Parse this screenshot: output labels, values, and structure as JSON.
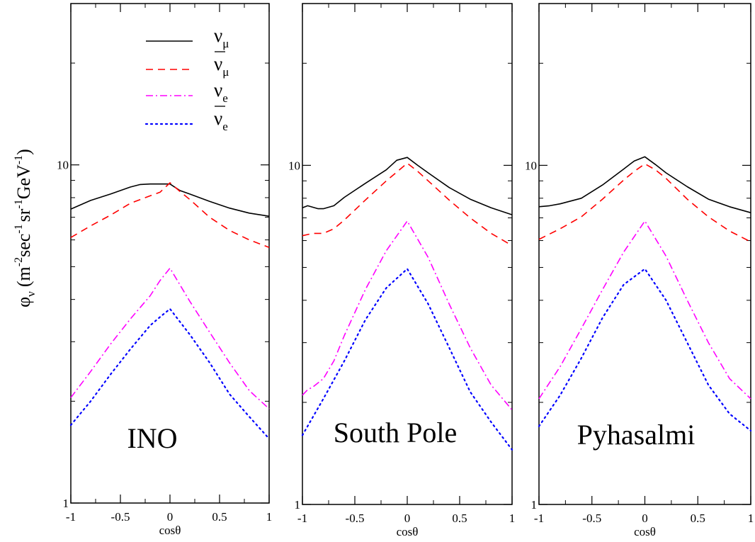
{
  "ylabel": {
    "phi": "φ",
    "nu": "ν",
    "unit": "(m",
    "e1": "-2",
    "sec": "sec",
    "e2": "-1",
    "sr": "sr",
    "e3": "-1",
    "gev": "GeV",
    "e4": "-1",
    "close": ")"
  },
  "xlabel": "cosθ",
  "legend": [
    {
      "symbol": "ν",
      "sub": "μ",
      "bar": false
    },
    {
      "symbol": "ν",
      "sub": "μ",
      "bar": true
    },
    {
      "symbol": "ν",
      "sub": "e",
      "bar": false
    },
    {
      "symbol": "ν",
      "sub": "e",
      "bar": true
    }
  ],
  "series_style": [
    {
      "color": "#000000",
      "dash": ""
    },
    {
      "color": "#ff0000",
      "dash": "10,7"
    },
    {
      "color": "#ff00ff",
      "dash": "10,4,2,4"
    },
    {
      "color": "#0000ff",
      "dash": "2,5"
    }
  ],
  "chart_data": [
    {
      "type": "line",
      "title": "INO",
      "xlabel": "cosθ",
      "ylabel": "φν (m-2 sec-1 sr-1 GeV-1)",
      "xlim": [
        -1,
        1
      ],
      "ylim": [
        1,
        30
      ],
      "yscale": "log",
      "x_ticks": [
        -1,
        -0.5,
        0,
        0.5,
        1
      ],
      "x_tick_labels": [
        "-1",
        "-0.5",
        "0",
        "0.5",
        "1"
      ],
      "y_ticks": [
        1,
        10
      ],
      "y_tick_labels": [
        "1",
        "10"
      ],
      "series": [
        {
          "x": [
            -1,
            -0.8,
            -0.6,
            -0.4,
            -0.3,
            -0.2,
            -0.1,
            0,
            0.1,
            0.2,
            0.4,
            0.6,
            0.8,
            1
          ],
          "values": [
            7.4,
            7.85,
            8.2,
            8.6,
            8.75,
            8.78,
            8.78,
            8.78,
            8.4,
            8.2,
            7.8,
            7.45,
            7.2,
            7.05
          ]
        },
        {
          "x": [
            -1,
            -0.8,
            -0.6,
            -0.4,
            -0.2,
            -0.1,
            0,
            0.1,
            0.2,
            0.4,
            0.6,
            0.8,
            1
          ],
          "values": [
            6.1,
            6.6,
            7.1,
            7.7,
            8.1,
            8.3,
            8.85,
            8.35,
            7.9,
            7.0,
            6.4,
            6.0,
            5.7
          ]
        },
        {
          "x": [
            -1,
            -0.8,
            -0.6,
            -0.4,
            -0.2,
            -0.1,
            0,
            0.2,
            0.4,
            0.6,
            0.8,
            1
          ],
          "values": [
            2.05,
            2.45,
            2.95,
            3.5,
            4.1,
            4.55,
            4.95,
            3.95,
            3.2,
            2.6,
            2.15,
            1.9
          ]
        },
        {
          "x": [
            -1,
            -0.8,
            -0.6,
            -0.4,
            -0.2,
            -0.1,
            0,
            0.2,
            0.4,
            0.6,
            0.8,
            1
          ],
          "values": [
            1.7,
            2.0,
            2.4,
            2.85,
            3.35,
            3.55,
            3.75,
            3.15,
            2.6,
            2.1,
            1.8,
            1.55
          ]
        }
      ]
    },
    {
      "type": "line",
      "title": "South Pole",
      "xlabel": "cosθ",
      "xlim": [
        -1,
        1
      ],
      "ylim": [
        1,
        30
      ],
      "yscale": "log",
      "x_ticks": [
        -1,
        -0.5,
        0,
        0.5,
        1
      ],
      "x_tick_labels": [
        "-1",
        "-0.5",
        "0",
        "0.5",
        "1"
      ],
      "y_ticks": [
        1,
        10
      ],
      "y_tick_labels": [
        "1",
        "10"
      ],
      "series": [
        {
          "x": [
            -1,
            -0.95,
            -0.85,
            -0.8,
            -0.7,
            -0.6,
            -0.4,
            -0.2,
            -0.1,
            0,
            0.1,
            0.2,
            0.4,
            0.6,
            0.8,
            1
          ],
          "values": [
            7.5,
            7.6,
            7.45,
            7.45,
            7.6,
            8.05,
            8.85,
            9.7,
            10.35,
            10.55,
            10.0,
            9.5,
            8.6,
            7.95,
            7.5,
            7.15
          ]
        },
        {
          "x": [
            -1,
            -0.9,
            -0.8,
            -0.7,
            -0.6,
            -0.4,
            -0.2,
            -0.1,
            0,
            0.1,
            0.2,
            0.4,
            0.6,
            0.8,
            1
          ],
          "values": [
            6.2,
            6.3,
            6.3,
            6.5,
            6.9,
            7.9,
            9.0,
            9.55,
            10.15,
            9.6,
            9.0,
            7.9,
            7.0,
            6.3,
            5.8
          ]
        },
        {
          "x": [
            -1,
            -0.95,
            -0.9,
            -0.8,
            -0.7,
            -0.6,
            -0.4,
            -0.2,
            0,
            0.2,
            0.4,
            0.6,
            0.8,
            1
          ],
          "values": [
            2.1,
            2.18,
            2.22,
            2.35,
            2.65,
            3.15,
            4.3,
            5.6,
            6.85,
            5.35,
            3.9,
            2.9,
            2.25,
            1.9
          ]
        },
        {
          "x": [
            -1,
            -0.8,
            -0.6,
            -0.4,
            -0.2,
            0,
            0.2,
            0.4,
            0.6,
            0.8,
            1
          ],
          "values": [
            1.6,
            2.05,
            2.65,
            3.5,
            4.35,
            4.95,
            3.9,
            2.9,
            2.15,
            1.75,
            1.45
          ]
        }
      ]
    },
    {
      "type": "line",
      "title": "Pyhasalmi",
      "xlabel": "cosθ",
      "xlim": [
        -1,
        1
      ],
      "ylim": [
        1,
        30
      ],
      "yscale": "log",
      "x_ticks": [
        -1,
        -0.5,
        0,
        0.5,
        1
      ],
      "x_tick_labels": [
        "-1",
        "-0.5",
        "0",
        "0.5",
        "1"
      ],
      "y_ticks": [
        1,
        10
      ],
      "y_tick_labels": [
        "1",
        "10"
      ],
      "series": [
        {
          "x": [
            -1,
            -0.9,
            -0.8,
            -0.6,
            -0.4,
            -0.2,
            -0.1,
            0,
            0.1,
            0.2,
            0.4,
            0.6,
            0.8,
            1
          ],
          "values": [
            7.55,
            7.6,
            7.7,
            8.0,
            8.75,
            9.75,
            10.3,
            10.6,
            10.05,
            9.5,
            8.65,
            7.95,
            7.55,
            7.25
          ]
        },
        {
          "x": [
            -1,
            -0.8,
            -0.6,
            -0.4,
            -0.2,
            -0.1,
            0,
            0.1,
            0.2,
            0.4,
            0.6,
            0.8,
            1
          ],
          "values": [
            6.05,
            6.5,
            7.05,
            7.95,
            9.05,
            9.6,
            10.1,
            9.7,
            9.15,
            7.95,
            7.05,
            6.4,
            5.95
          ]
        },
        {
          "x": [
            -1,
            -0.8,
            -0.6,
            -0.4,
            -0.2,
            0,
            0.2,
            0.4,
            0.6,
            0.8,
            1
          ],
          "values": [
            2.05,
            2.55,
            3.3,
            4.3,
            5.55,
            6.85,
            5.4,
            4.0,
            3.0,
            2.35,
            2.05
          ]
        },
        {
          "x": [
            -1,
            -0.8,
            -0.6,
            -0.4,
            -0.2,
            0,
            0.2,
            0.4,
            0.6,
            0.8,
            1
          ],
          "values": [
            1.7,
            2.1,
            2.7,
            3.55,
            4.45,
            4.95,
            4.0,
            3.0,
            2.25,
            1.85,
            1.65
          ]
        }
      ]
    }
  ]
}
